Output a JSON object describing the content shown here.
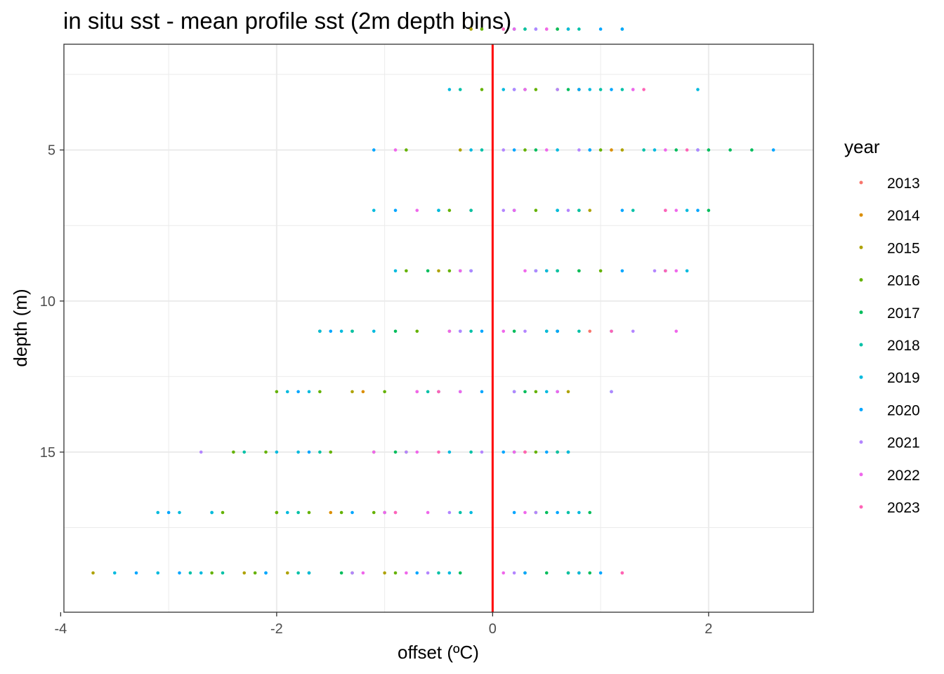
{
  "chart_data": {
    "type": "scatter",
    "title": "in situ sst - mean profile sst (2m depth bins)",
    "xlabel": "offset (ºC)",
    "ylabel": "depth (m)",
    "xlim": [
      -3.97,
      2.97
    ],
    "ylim": [
      1.5,
      20.3
    ],
    "y_reversed": true,
    "x_ticks": [
      -4,
      -2,
      0,
      2
    ],
    "x_tick_labels": [
      "-4",
      "-2",
      "0",
      "2"
    ],
    "y_ticks": [
      5,
      10,
      15
    ],
    "y_tick_labels": [
      "5",
      "10",
      "15"
    ],
    "grid": true,
    "reference_line": {
      "x": 0,
      "color": "#ff0000"
    },
    "legend": {
      "title": "year",
      "position": "right",
      "entries": [
        {
          "label": "2013",
          "color": "#F8766D"
        },
        {
          "label": "2014",
          "color": "#DB8E00"
        },
        {
          "label": "2015",
          "color": "#AEA200"
        },
        {
          "label": "2016",
          "color": "#64B200"
        },
        {
          "label": "2017",
          "color": "#00BD5C"
        },
        {
          "label": "2018",
          "color": "#00C1A7"
        },
        {
          "label": "2019",
          "color": "#00BADE"
        },
        {
          "label": "2020",
          "color": "#00A6FF"
        },
        {
          "label": "2021",
          "color": "#B385FF"
        },
        {
          "label": "2022",
          "color": "#EF67EB"
        },
        {
          "label": "2023",
          "color": "#FF63B6"
        }
      ]
    },
    "series": [
      {
        "name": "2013",
        "points": [
          [
            1.2,
            19
          ],
          [
            -0.7,
            13
          ],
          [
            0.9,
            11
          ],
          [
            0.5,
            1
          ]
        ]
      },
      {
        "name": "2014",
        "points": [
          [
            0.8,
            19
          ],
          [
            -1.5,
            17
          ],
          [
            0.3,
            15
          ],
          [
            -1.2,
            13
          ],
          [
            0.5,
            9
          ],
          [
            1.1,
            5
          ],
          [
            0.8,
            3
          ]
        ]
      },
      {
        "name": "2015",
        "points": [
          [
            -3.7,
            19
          ],
          [
            -2.3,
            19
          ],
          [
            -1.9,
            19
          ],
          [
            -1.0,
            19
          ],
          [
            0.7,
            19
          ],
          [
            -2.0,
            17
          ],
          [
            -0.8,
            15
          ],
          [
            0.6,
            15
          ],
          [
            -1.3,
            13
          ],
          [
            0.7,
            13
          ],
          [
            -1.6,
            11
          ],
          [
            0.6,
            11
          ],
          [
            -0.5,
            9
          ],
          [
            0.8,
            9
          ],
          [
            -0.2,
            7
          ],
          [
            0.9,
            7
          ],
          [
            -0.3,
            5
          ],
          [
            1.2,
            5
          ],
          [
            0.6,
            3
          ],
          [
            -0.2,
            1
          ],
          [
            0.6,
            1
          ]
        ]
      },
      {
        "name": "2016",
        "points": [
          [
            -2.6,
            19
          ],
          [
            -2.2,
            19
          ],
          [
            -1.7,
            19
          ],
          [
            -1.3,
            19
          ],
          [
            -0.9,
            19
          ],
          [
            0.3,
            19
          ],
          [
            -2.5,
            17
          ],
          [
            -2.0,
            17
          ],
          [
            -1.7,
            17
          ],
          [
            -1.4,
            17
          ],
          [
            -1.1,
            17
          ],
          [
            0.4,
            17
          ],
          [
            -2.4,
            15
          ],
          [
            -2.1,
            15
          ],
          [
            -1.5,
            15
          ],
          [
            -1.1,
            15
          ],
          [
            0.4,
            15
          ],
          [
            -2.0,
            13
          ],
          [
            -1.6,
            13
          ],
          [
            -1.0,
            13
          ],
          [
            0.4,
            13
          ],
          [
            -1.6,
            11
          ],
          [
            -1.3,
            11
          ],
          [
            -0.7,
            11
          ],
          [
            -0.4,
            11
          ],
          [
            0.5,
            11
          ],
          [
            -0.8,
            9
          ],
          [
            -0.4,
            9
          ],
          [
            0.6,
            9
          ],
          [
            1.0,
            9
          ],
          [
            -0.4,
            7
          ],
          [
            0.4,
            7
          ],
          [
            0.8,
            7
          ],
          [
            -0.8,
            5
          ],
          [
            0.3,
            5
          ],
          [
            1.0,
            5
          ],
          [
            -0.1,
            3
          ],
          [
            0.4,
            3
          ],
          [
            0.8,
            3
          ],
          [
            -0.1,
            1
          ],
          [
            0.3,
            1
          ],
          [
            0.7,
            1
          ]
        ]
      },
      {
        "name": "2017",
        "points": [
          [
            -1.4,
            19
          ],
          [
            -0.3,
            19
          ],
          [
            0.5,
            19
          ],
          [
            0.9,
            19
          ],
          [
            -1.0,
            17
          ],
          [
            0.5,
            17
          ],
          [
            0.9,
            17
          ],
          [
            -0.9,
            15
          ],
          [
            0.2,
            15
          ],
          [
            0.7,
            15
          ],
          [
            -0.5,
            13
          ],
          [
            0.3,
            13
          ],
          [
            -0.9,
            11
          ],
          [
            0.2,
            11
          ],
          [
            0.6,
            11
          ],
          [
            -0.6,
            9
          ],
          [
            0.4,
            9
          ],
          [
            0.8,
            9
          ],
          [
            0.6,
            7
          ],
          [
            2.0,
            7
          ],
          [
            0.4,
            5
          ],
          [
            1.7,
            5
          ],
          [
            2.0,
            5
          ],
          [
            2.2,
            5
          ],
          [
            2.4,
            5
          ],
          [
            0.3,
            3
          ],
          [
            0.7,
            3
          ],
          [
            0.2,
            1
          ],
          [
            0.6,
            1
          ],
          [
            1.2,
            1
          ]
        ]
      },
      {
        "name": "2018",
        "points": [
          [
            -2.8,
            19
          ],
          [
            -2.5,
            19
          ],
          [
            -1.8,
            19
          ],
          [
            -0.5,
            19
          ],
          [
            0.7,
            19
          ],
          [
            -2.6,
            17
          ],
          [
            -1.8,
            17
          ],
          [
            -0.3,
            17
          ],
          [
            0.7,
            17
          ],
          [
            -2.3,
            15
          ],
          [
            -1.6,
            15
          ],
          [
            -0.2,
            15
          ],
          [
            0.6,
            15
          ],
          [
            -0.6,
            13
          ],
          [
            0.2,
            13
          ],
          [
            -1.3,
            11
          ],
          [
            -0.2,
            11
          ],
          [
            0.8,
            11
          ],
          [
            -0.3,
            9
          ],
          [
            0.6,
            9
          ],
          [
            -0.5,
            7
          ],
          [
            -0.2,
            7
          ],
          [
            0.8,
            7
          ],
          [
            1.3,
            7
          ],
          [
            -0.1,
            5
          ],
          [
            0.9,
            5
          ],
          [
            1.4,
            5
          ],
          [
            -0.3,
            3
          ],
          [
            1.0,
            3
          ],
          [
            1.2,
            3
          ],
          [
            0.3,
            1
          ],
          [
            0.8,
            1
          ]
        ]
      },
      {
        "name": "2019",
        "points": [
          [
            -3.5,
            19
          ],
          [
            -3.1,
            19
          ],
          [
            -2.7,
            19
          ],
          [
            -2.1,
            19
          ],
          [
            -1.7,
            19
          ],
          [
            -0.4,
            19
          ],
          [
            0.8,
            19
          ],
          [
            -3.1,
            17
          ],
          [
            -2.9,
            17
          ],
          [
            -2.6,
            17
          ],
          [
            -1.9,
            17
          ],
          [
            -0.2,
            17
          ],
          [
            0.8,
            17
          ],
          [
            -2.0,
            15
          ],
          [
            -1.8,
            15
          ],
          [
            -0.4,
            15
          ],
          [
            0.7,
            15
          ],
          [
            -1.9,
            13
          ],
          [
            -1.7,
            13
          ],
          [
            -0.3,
            13
          ],
          [
            0.5,
            13
          ],
          [
            1.1,
            13
          ],
          [
            -1.6,
            11
          ],
          [
            -1.4,
            11
          ],
          [
            -1.1,
            11
          ],
          [
            -0.3,
            11
          ],
          [
            0.5,
            11
          ],
          [
            1.1,
            11
          ],
          [
            -0.9,
            9
          ],
          [
            -0.2,
            9
          ],
          [
            0.5,
            9
          ],
          [
            1.8,
            9
          ],
          [
            -1.1,
            7
          ],
          [
            -0.5,
            7
          ],
          [
            0.2,
            7
          ],
          [
            0.6,
            7
          ],
          [
            1.8,
            7
          ],
          [
            -0.2,
            5
          ],
          [
            0.6,
            5
          ],
          [
            1.5,
            5
          ],
          [
            1.9,
            5
          ],
          [
            -0.4,
            3
          ],
          [
            0.1,
            3
          ],
          [
            0.9,
            3
          ],
          [
            1.9,
            3
          ],
          [
            0.2,
            1
          ],
          [
            0.7,
            1
          ]
        ]
      },
      {
        "name": "2020",
        "points": [
          [
            -3.3,
            19
          ],
          [
            -2.9,
            19
          ],
          [
            -2.1,
            19
          ],
          [
            -0.7,
            19
          ],
          [
            0.3,
            19
          ],
          [
            1.0,
            19
          ],
          [
            -3.0,
            17
          ],
          [
            -1.3,
            17
          ],
          [
            0.2,
            17
          ],
          [
            0.6,
            17
          ],
          [
            -1.7,
            15
          ],
          [
            0.1,
            15
          ],
          [
            0.5,
            15
          ],
          [
            -1.8,
            13
          ],
          [
            -0.1,
            13
          ],
          [
            0.6,
            13
          ],
          [
            -1.5,
            11
          ],
          [
            -0.1,
            11
          ],
          [
            0.6,
            11
          ],
          [
            -0.2,
            9
          ],
          [
            0.4,
            9
          ],
          [
            1.2,
            9
          ],
          [
            1.6,
            9
          ],
          [
            -0.9,
            7
          ],
          [
            0.2,
            7
          ],
          [
            1.2,
            7
          ],
          [
            1.9,
            7
          ],
          [
            -1.1,
            5
          ],
          [
            0.2,
            5
          ],
          [
            0.9,
            5
          ],
          [
            2.6,
            5
          ],
          [
            0.2,
            3
          ],
          [
            0.8,
            3
          ],
          [
            1.1,
            3
          ],
          [
            0.4,
            1
          ],
          [
            1.0,
            1
          ],
          [
            1.2,
            1
          ]
        ]
      },
      {
        "name": "2021",
        "points": [
          [
            -1.3,
            19
          ],
          [
            -0.6,
            19
          ],
          [
            0.2,
            19
          ],
          [
            -0.9,
            17
          ],
          [
            -0.4,
            17
          ],
          [
            0.4,
            17
          ],
          [
            -2.7,
            15
          ],
          [
            -0.8,
            15
          ],
          [
            -0.1,
            15
          ],
          [
            -0.5,
            13
          ],
          [
            0.2,
            13
          ],
          [
            1.1,
            13
          ],
          [
            -0.3,
            11
          ],
          [
            0.3,
            11
          ],
          [
            1.3,
            11
          ],
          [
            -0.2,
            9
          ],
          [
            0.4,
            9
          ],
          [
            1.5,
            9
          ],
          [
            0.1,
            7
          ],
          [
            0.7,
            7
          ],
          [
            1.6,
            7
          ],
          [
            0.1,
            5
          ],
          [
            0.8,
            5
          ],
          [
            1.9,
            5
          ],
          [
            0.2,
            3
          ],
          [
            0.6,
            3
          ],
          [
            1.3,
            3
          ],
          [
            0.1,
            1
          ],
          [
            0.4,
            1
          ]
        ]
      },
      {
        "name": "2022",
        "points": [
          [
            -1.2,
            19
          ],
          [
            -0.8,
            19
          ],
          [
            0.1,
            19
          ],
          [
            -1.0,
            17
          ],
          [
            -0.6,
            17
          ],
          [
            0.3,
            17
          ],
          [
            -1.1,
            15
          ],
          [
            -0.7,
            15
          ],
          [
            0.2,
            15
          ],
          [
            -0.7,
            13
          ],
          [
            -0.3,
            13
          ],
          [
            0.6,
            13
          ],
          [
            -0.4,
            11
          ],
          [
            0.1,
            11
          ],
          [
            1.7,
            11
          ],
          [
            -0.3,
            9
          ],
          [
            0.3,
            9
          ],
          [
            1.7,
            9
          ],
          [
            -0.7,
            7
          ],
          [
            0.2,
            7
          ],
          [
            1.7,
            7
          ],
          [
            -0.9,
            5
          ],
          [
            0.5,
            5
          ],
          [
            1.6,
            5
          ],
          [
            0.3,
            3
          ],
          [
            1.3,
            3
          ],
          [
            0.2,
            1
          ],
          [
            0.5,
            1
          ]
        ]
      },
      {
        "name": "2023",
        "points": [
          [
            1.2,
            19
          ],
          [
            -0.9,
            17
          ],
          [
            -0.5,
            15
          ],
          [
            0.3,
            15
          ],
          [
            -0.5,
            13
          ],
          [
            1.1,
            11
          ],
          [
            1.6,
            9
          ],
          [
            1.6,
            7
          ],
          [
            1.8,
            5
          ],
          [
            1.4,
            3
          ],
          [
            0.1,
            1
          ]
        ]
      }
    ]
  }
}
